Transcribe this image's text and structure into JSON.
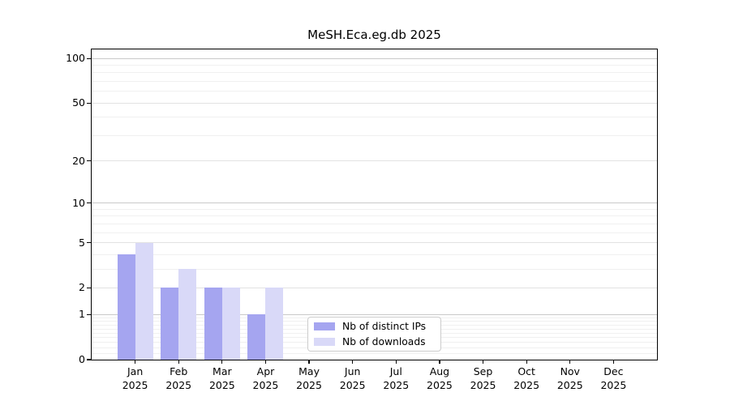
{
  "figure": {
    "background": "#ffffff"
  },
  "chart_data": {
    "type": "bar",
    "title": "MeSH.Eca.eg.db 2025",
    "categories": [
      "Jan",
      "Feb",
      "Mar",
      "Apr",
      "May",
      "Jun",
      "Jul",
      "Aug",
      "Sep",
      "Oct",
      "Nov",
      "Dec"
    ],
    "category_year": "2025",
    "series": [
      {
        "name": "Nb of distinct IPs",
        "color": "#a5a5f0",
        "values": [
          4,
          2,
          2,
          1,
          0,
          0,
          0,
          0,
          0,
          0,
          0,
          0
        ]
      },
      {
        "name": "Nb of downloads",
        "color": "#d9d9f8",
        "values": [
          5,
          3,
          2,
          2,
          0,
          0,
          0,
          0,
          0,
          0,
          0,
          0
        ]
      }
    ],
    "y_scale": "log10(value+1)",
    "y_ticks": [
      0,
      1,
      2,
      5,
      10,
      20,
      50,
      100
    ],
    "ylim": [
      0,
      115
    ],
    "xlabel": "",
    "ylabel": "",
    "grid": "on",
    "legend_position": "bottom-center"
  }
}
